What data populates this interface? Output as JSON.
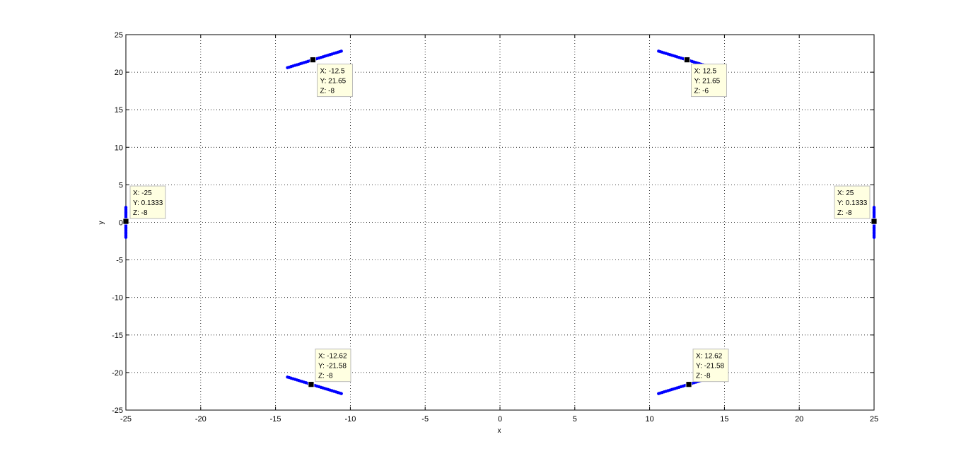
{
  "chart_data": {
    "type": "scatter",
    "title": "",
    "xlabel": "x",
    "ylabel": "y",
    "xlim": [
      -25,
      25
    ],
    "ylim": [
      -25,
      25
    ],
    "xticks": [
      -25,
      -20,
      -15,
      -10,
      -5,
      0,
      5,
      10,
      15,
      20,
      25
    ],
    "yticks": [
      -25,
      -20,
      -15,
      -10,
      -5,
      0,
      5,
      10,
      15,
      20,
      25
    ],
    "xtick_labels": [
      "-25",
      "-20",
      "-15",
      "-10",
      "-5",
      "0",
      "5",
      "10",
      "15",
      "20",
      "25"
    ],
    "ytick_labels": [
      "-25",
      "-20",
      "-15",
      "-10",
      "-5",
      "0",
      "5",
      "10",
      "15",
      "20",
      "25"
    ],
    "grid": true,
    "grid_style": "dotted",
    "colors": {
      "series": "#0000ff",
      "marker": "#000000",
      "tooltip_bg": "#ffffe1",
      "tooltip_border": "#bbbbbb",
      "axis": "#000000",
      "grid": "#000000"
    },
    "series": [
      {
        "points": [
          [
            -14.2,
            20.6
          ],
          [
            -10.6,
            22.8
          ]
        ],
        "n": 30
      },
      {
        "points": [
          [
            10.6,
            22.8
          ],
          [
            14.2,
            20.6
          ]
        ],
        "n": 30
      },
      {
        "points": [
          [
            -14.2,
            -20.6
          ],
          [
            -10.6,
            -22.8
          ]
        ],
        "n": 30
      },
      {
        "points": [
          [
            10.6,
            -22.8
          ],
          [
            14.2,
            -20.6
          ]
        ],
        "n": 30
      },
      {
        "points": [
          [
            -25,
            2.0
          ],
          [
            -25,
            -2.0
          ]
        ],
        "n": 25
      },
      {
        "points": [
          [
            25,
            2.0
          ],
          [
            25,
            -2.0
          ]
        ],
        "n": 25
      }
    ],
    "datatips": [
      {
        "x": -12.5,
        "y": 21.65,
        "lines": [
          "X: -12.5",
          "Y: 21.65",
          "Z: -8"
        ],
        "side": "right-below"
      },
      {
        "x": 12.5,
        "y": 21.65,
        "lines": [
          "X: 12.5",
          "Y: 21.65",
          "Z: -6"
        ],
        "side": "right-below"
      },
      {
        "x": -25,
        "y": 0.1333,
        "lines": [
          "X: -25",
          "Y: 0.1333",
          "Z: -8"
        ],
        "side": "right-above"
      },
      {
        "x": 25,
        "y": 0.1333,
        "lines": [
          "X: 25",
          "Y: 0.1333",
          "Z: -8"
        ],
        "side": "left-above"
      },
      {
        "x": -12.62,
        "y": -21.58,
        "lines": [
          "X: -12.62",
          "Y: -21.58",
          "Z: -8"
        ],
        "side": "right-above"
      },
      {
        "x": 12.62,
        "y": -21.58,
        "lines": [
          "X: 12.62",
          "Y: -21.58",
          "Z: -8"
        ],
        "side": "right-above"
      }
    ]
  }
}
